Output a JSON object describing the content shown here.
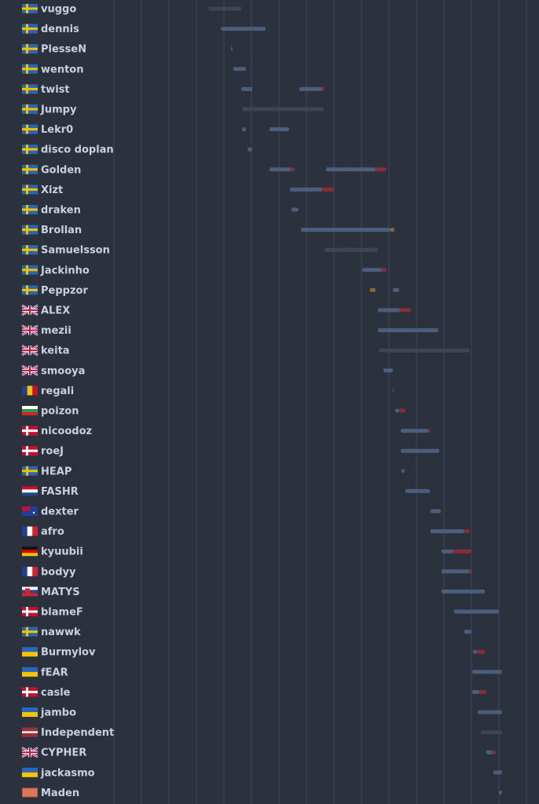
{
  "chart_data": {
    "type": "timeline",
    "xlim": [
      0,
      15
    ],
    "xticks": [
      0,
      1,
      2,
      3,
      4,
      5,
      6,
      7,
      8,
      9,
      10,
      11,
      12,
      13,
      14,
      15
    ],
    "rows": [
      {
        "name": "vuggo",
        "segments": [
          {
            "start": 3.43,
            "end": 4.63,
            "color": "#3d4654"
          }
        ]
      },
      {
        "name": "dennis",
        "segments": [
          {
            "start": 3.89,
            "end": 5.51,
            "color": "#4b5f7d"
          }
        ]
      },
      {
        "name": "PlesseN",
        "segments": [
          {
            "start": 4.26,
            "end": 4.31,
            "color": "#4b5f7d"
          }
        ]
      },
      {
        "name": "wenton",
        "segments": [
          {
            "start": 4.34,
            "end": 4.8,
            "color": "#4b5f7d"
          }
        ]
      },
      {
        "name": "twist",
        "segments": [
          {
            "start": 4.63,
            "end": 5.03,
            "color": "#4b5f7d"
          },
          {
            "start": 6.74,
            "end": 7.57,
            "color": "#4b5f7d"
          },
          {
            "start": 7.57,
            "end": 7.66,
            "color": "#8a2c36"
          }
        ]
      },
      {
        "name": "Jumpy",
        "segments": [
          {
            "start": 4.66,
            "end": 7.63,
            "color": "#3d4654"
          }
        ]
      },
      {
        "name": "Lekr0",
        "segments": [
          {
            "start": 4.66,
            "end": 4.8,
            "color": "#4b5f7d"
          },
          {
            "start": 5.66,
            "end": 6.37,
            "color": "#4b5f7d"
          }
        ]
      },
      {
        "name": "disco doplan",
        "segments": [
          {
            "start": 4.86,
            "end": 5.03,
            "color": "#4b5f7d"
          }
        ]
      },
      {
        "name": "Golden",
        "segments": [
          {
            "start": 5.66,
            "end": 6.43,
            "color": "#4b5f7d"
          },
          {
            "start": 6.43,
            "end": 6.57,
            "color": "#8a2c36"
          },
          {
            "start": 7.71,
            "end": 9.51,
            "color": "#4b5f7d"
          },
          {
            "start": 9.51,
            "end": 9.91,
            "color": "#8a2c36"
          }
        ]
      },
      {
        "name": "Xizt",
        "segments": [
          {
            "start": 6.4,
            "end": 7.57,
            "color": "#4b5f7d"
          },
          {
            "start": 7.57,
            "end": 8.0,
            "color": "#8a2c36"
          }
        ]
      },
      {
        "name": "draken",
        "segments": [
          {
            "start": 6.46,
            "end": 6.71,
            "color": "#4b5f7d"
          }
        ]
      },
      {
        "name": "Brollan",
        "segments": [
          {
            "start": 6.8,
            "end": 10.06,
            "color": "#4b5f7d"
          },
          {
            "start": 10.06,
            "end": 10.2,
            "color": "#8a6a2a"
          }
        ]
      },
      {
        "name": "Samuelsson",
        "segments": [
          {
            "start": 7.66,
            "end": 9.6,
            "color": "#3d4654"
          }
        ]
      },
      {
        "name": "Jackinho",
        "segments": [
          {
            "start": 9.03,
            "end": 9.74,
            "color": "#4b5f7d"
          },
          {
            "start": 9.74,
            "end": 9.91,
            "color": "#8a2c36"
          }
        ]
      },
      {
        "name": "Peppzor",
        "segments": [
          {
            "start": 9.31,
            "end": 9.51,
            "color": "#8a6a2a"
          },
          {
            "start": 10.14,
            "end": 10.37,
            "color": "#4b5f7d"
          }
        ]
      },
      {
        "name": "ALEX",
        "segments": [
          {
            "start": 9.6,
            "end": 10.4,
            "color": "#4b5f7d"
          },
          {
            "start": 10.4,
            "end": 10.8,
            "color": "#8a2c36"
          }
        ]
      },
      {
        "name": "mezii",
        "segments": [
          {
            "start": 9.6,
            "end": 11.8,
            "color": "#4b5f7d"
          }
        ]
      },
      {
        "name": "keita",
        "segments": [
          {
            "start": 9.63,
            "end": 12.94,
            "color": "#3d4654"
          }
        ]
      },
      {
        "name": "smooya",
        "segments": [
          {
            "start": 9.8,
            "end": 10.14,
            "color": "#4b5f7d"
          }
        ]
      },
      {
        "name": "regali",
        "segments": [
          {
            "start": 10.14,
            "end": 10.17,
            "color": "#4b5f7d"
          }
        ]
      },
      {
        "name": "poizon",
        "segments": [
          {
            "start": 10.23,
            "end": 10.37,
            "color": "#4b5f7d"
          },
          {
            "start": 10.37,
            "end": 10.6,
            "color": "#8a2c36"
          }
        ]
      },
      {
        "name": "nicoodoz",
        "segments": [
          {
            "start": 10.43,
            "end": 11.43,
            "color": "#4b5f7d"
          },
          {
            "start": 11.43,
            "end": 11.51,
            "color": "#8a2c36"
          }
        ]
      },
      {
        "name": "roeJ",
        "segments": [
          {
            "start": 10.43,
            "end": 11.83,
            "color": "#4b5f7d"
          }
        ]
      },
      {
        "name": "HEAP",
        "segments": [
          {
            "start": 10.46,
            "end": 10.57,
            "color": "#4b5f7d"
          }
        ]
      },
      {
        "name": "FASHR",
        "segments": [
          {
            "start": 10.6,
            "end": 11.49,
            "color": "#4b5f7d"
          }
        ]
      },
      {
        "name": "dexter",
        "segments": [
          {
            "start": 11.51,
            "end": 11.86,
            "color": "#4b5f7d"
          },
          {
            "start": 11.86,
            "end": 11.91,
            "color": "#8a2c36"
          }
        ]
      },
      {
        "name": "afro",
        "segments": [
          {
            "start": 11.51,
            "end": 12.74,
            "color": "#4b5f7d"
          },
          {
            "start": 12.74,
            "end": 12.94,
            "color": "#8a2c36"
          }
        ]
      },
      {
        "name": "kyuubii",
        "segments": [
          {
            "start": 11.91,
            "end": 12.34,
            "color": "#4b5f7d"
          },
          {
            "start": 12.34,
            "end": 13.0,
            "color": "#8a2c36"
          }
        ]
      },
      {
        "name": "bodyy",
        "segments": [
          {
            "start": 11.91,
            "end": 12.94,
            "color": "#4b5f7d"
          },
          {
            "start": 12.94,
            "end": 13.03,
            "color": "#8a2c36"
          }
        ]
      },
      {
        "name": "MATYS",
        "segments": [
          {
            "start": 11.91,
            "end": 13.49,
            "color": "#4b5f7d"
          }
        ]
      },
      {
        "name": "blameF",
        "segments": [
          {
            "start": 12.37,
            "end": 14.0,
            "color": "#4b5f7d"
          }
        ]
      },
      {
        "name": "nawwk",
        "segments": [
          {
            "start": 12.74,
            "end": 13.0,
            "color": "#4b5f7d"
          }
        ]
      },
      {
        "name": "Burmylov",
        "segments": [
          {
            "start": 13.06,
            "end": 13.2,
            "color": "#4b5f7d"
          },
          {
            "start": 13.2,
            "end": 13.49,
            "color": "#8a2c36"
          }
        ]
      },
      {
        "name": "fEAR",
        "segments": [
          {
            "start": 13.03,
            "end": 14.11,
            "color": "#4b5f7d"
          }
        ]
      },
      {
        "name": "casle",
        "segments": [
          {
            "start": 13.03,
            "end": 13.29,
            "color": "#4b5f7d"
          },
          {
            "start": 13.29,
            "end": 13.54,
            "color": "#8a2c36"
          }
        ]
      },
      {
        "name": "jambo",
        "segments": [
          {
            "start": 13.23,
            "end": 14.11,
            "color": "#4b5f7d"
          }
        ]
      },
      {
        "name": "Independent",
        "segments": [
          {
            "start": 13.34,
            "end": 14.11,
            "color": "#3d4654"
          }
        ]
      },
      {
        "name": "CYPHER",
        "segments": [
          {
            "start": 13.54,
            "end": 13.77,
            "color": "#4b5f7d"
          },
          {
            "start": 13.77,
            "end": 13.89,
            "color": "#8a2c36"
          }
        ]
      },
      {
        "name": "jackasmo",
        "segments": [
          {
            "start": 13.8,
            "end": 14.11,
            "color": "#4b5f7d"
          }
        ]
      },
      {
        "name": "Maden",
        "segments": [
          {
            "start": 14.0,
            "end": 14.11,
            "color": "#4b5f7d"
          }
        ]
      }
    ]
  }
}
